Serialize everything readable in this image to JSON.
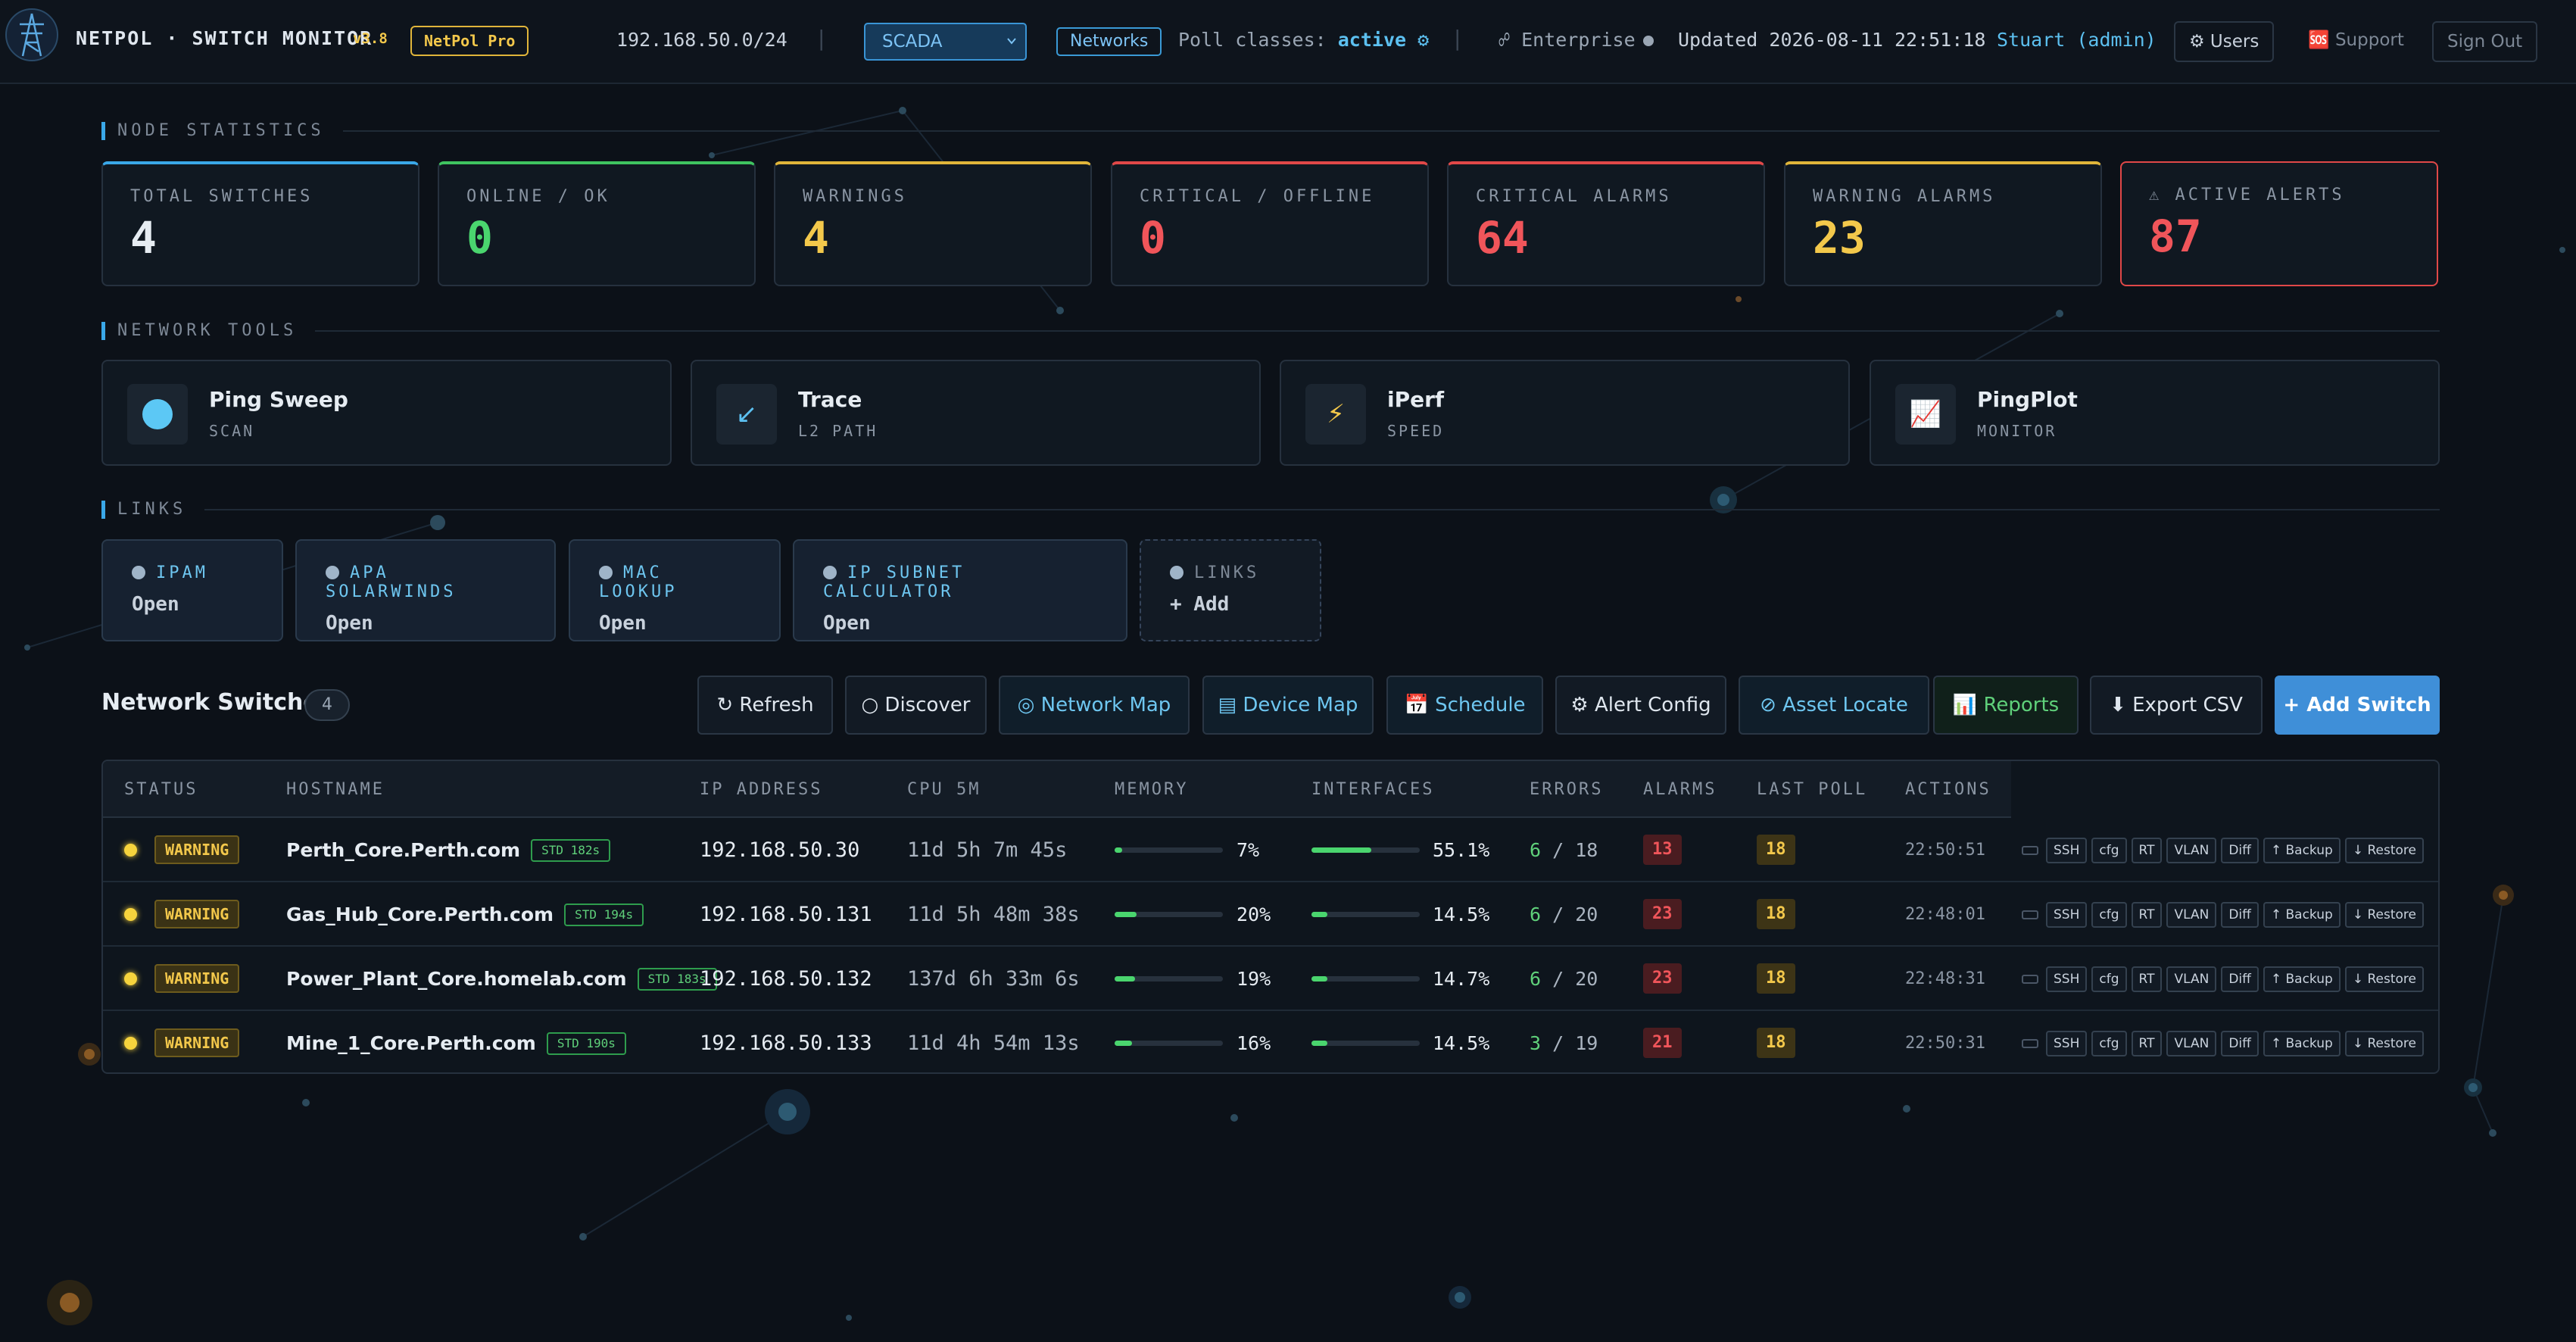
{
  "header": {
    "brand": "NETPOL · SWITCH MONITOR",
    "version": "v3.8",
    "edition": "NetPol Pro",
    "subnet": "192.168.50.0/24",
    "separator": "|",
    "profile_select": "SCADA",
    "networks_button": "Networks",
    "poll_label": "Poll classes:",
    "poll_value": "active ⚙",
    "enterprise": "☍ Enterprise",
    "updated": "Updated 2026-08-11 22:51:18",
    "user": "Stuart (admin)",
    "users_button": "⚙ Users",
    "support_button": "🆘 Support",
    "signout_button": "Sign Out"
  },
  "sections": {
    "node_statistics": "NODE STATISTICS",
    "network_tools": "NETWORK TOOLS",
    "links": "LINKS"
  },
  "stats": [
    {
      "label": "TOTAL SWITCHES",
      "value": "4",
      "color": "#e6ecf2",
      "accent": "#3aa8e8"
    },
    {
      "label": "ONLINE / OK",
      "value": "0",
      "color": "#4ad56e",
      "accent": "#3fc460"
    },
    {
      "label": "WARNINGS",
      "value": "4",
      "color": "#f3c84b",
      "accent": "#e0b53a"
    },
    {
      "label": "CRITICAL / OFFLINE",
      "value": "0",
      "color": "#f0555a",
      "accent": "#e04848"
    },
    {
      "label": "CRITICAL ALARMS",
      "value": "64",
      "color": "#f0555a",
      "accent": "#e04848"
    },
    {
      "label": "WARNING ALARMS",
      "value": "23",
      "color": "#f3c84b",
      "accent": "#e0b53a"
    },
    {
      "label": "⚠ ACTIVE ALERTS",
      "value": "87",
      "color": "#f0555a",
      "accent": "#e04848"
    }
  ],
  "tools": [
    {
      "name": "Ping Sweep",
      "sub": "SCAN",
      "icon": "ping-sweep-icon"
    },
    {
      "name": "Trace",
      "sub": "L2 PATH",
      "icon": "trace-arrow-icon",
      "glyph": "↙"
    },
    {
      "name": "iPerf",
      "sub": "SPEED",
      "icon": "lightning-icon",
      "glyph": "⚡"
    },
    {
      "name": "PingPlot",
      "sub": "MONITOR",
      "icon": "chart-icon",
      "glyph": "📈"
    }
  ],
  "links": [
    {
      "title": "IPAM",
      "action": "Open"
    },
    {
      "title": "APA SOLARWINDS",
      "action": "Open"
    },
    {
      "title": "MAC LOOKUP",
      "action": "Open"
    },
    {
      "title": "IP SUBNET CALCULATOR",
      "action": "Open"
    },
    {
      "title": "LINKS",
      "action": "+ Add"
    }
  ],
  "switches": {
    "title": "Network Switches",
    "count": "4",
    "buttons": {
      "refresh": "↻ Refresh",
      "discover": "○ Discover",
      "network_map": "◎ Network Map",
      "device_map": "▤ Device Map",
      "schedule": "📅 Schedule",
      "alert_config": "⚙ Alert Config",
      "asset_locate": "⊘ Asset Locate",
      "reports": "📊 Reports",
      "export": "⬇ Export CSV",
      "add": "+ Add Switch"
    },
    "columns": [
      "STATUS",
      "HOSTNAME",
      "IP ADDRESS",
      "CPU 5M",
      "MEMORY",
      "INTERFACES",
      "ERRORS",
      "ALARMS",
      "LAST POLL",
      "ACTIONS"
    ],
    "action_labels": [
      "SSH",
      "cfg",
      "RT",
      "VLAN",
      "Diff",
      "↑ Backup",
      "↓ Restore"
    ],
    "rows": [
      {
        "status": "WARNING",
        "hostname": "Perth_Core.Perth.com",
        "std": "STD 182s",
        "ip": "192.168.50.30",
        "cpu": "11d 5h 7m 45s",
        "memory_pct": 7,
        "memory": "7%",
        "interfaces_pct": 55.1,
        "interfaces": "55.1%",
        "errors_ok": "6",
        "errors_total": "/ 18",
        "alarms": "13",
        "last_poll": "18",
        "time": "22:50:51"
      },
      {
        "status": "WARNING",
        "hostname": "Gas_Hub_Core.Perth.com",
        "std": "STD 194s",
        "ip": "192.168.50.131",
        "cpu": "11d 5h 48m 38s",
        "memory_pct": 20,
        "memory": "20%",
        "interfaces_pct": 14.5,
        "interfaces": "14.5%",
        "errors_ok": "6",
        "errors_total": "/ 20",
        "alarms": "23",
        "last_poll": "18",
        "time": "22:48:01"
      },
      {
        "status": "WARNING",
        "hostname": "Power_Plant_Core.homelab.com",
        "std": "STD 183s",
        "ip": "192.168.50.132",
        "cpu": "137d 6h 33m 6s",
        "memory_pct": 19,
        "memory": "19%",
        "interfaces_pct": 14.7,
        "interfaces": "14.7%",
        "errors_ok": "6",
        "errors_total": "/ 20",
        "alarms": "23",
        "last_poll": "18",
        "time": "22:48:31"
      },
      {
        "status": "WARNING",
        "hostname": "Mine_1_Core.Perth.com",
        "std": "STD 190s",
        "ip": "192.168.50.133",
        "cpu": "11d 4h 54m 13s",
        "memory_pct": 16,
        "memory": "16%",
        "interfaces_pct": 14.5,
        "interfaces": "14.5%",
        "errors_ok": "3",
        "errors_total": "/ 19",
        "alarms": "21",
        "last_poll": "18",
        "time": "22:50:31"
      }
    ]
  }
}
